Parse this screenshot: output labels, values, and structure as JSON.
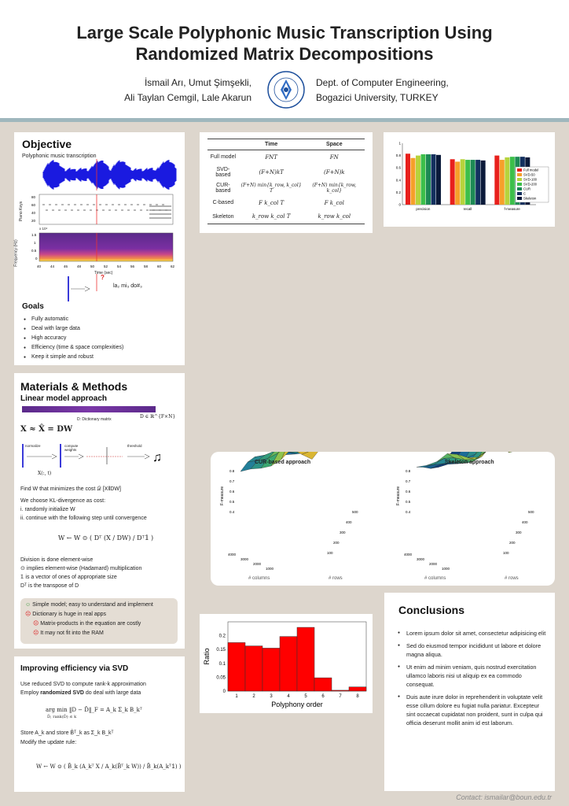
{
  "header": {
    "title_line1": "Large Scale Polyphonic Music Transcription Using",
    "title_line2": "Randomized Matrix Decompositions",
    "authors_line1": "İsmail Arı, Umut Şimşekli,",
    "authors_line2": "Ali Taylan Cemgil, Lale Akarun",
    "dept_line1": "Dept. of Computer Engineering,",
    "dept_line2": "Bogazici University, TURKEY",
    "seal_text": "BOGAZİÇİ ÜNİVERSİTESİ",
    "seal_year": "1863"
  },
  "objective": {
    "heading": "Objective",
    "subtitle": "Polyphonic music transcription",
    "piano_keys_label": "Piano Keys",
    "freq_label": "Frequency (Hz)",
    "freq_scale": "x 10⁴",
    "freq_ticks": [
      "1.5",
      "1",
      "0.5",
      "0"
    ],
    "key_ticks": [
      "80",
      "60",
      "40",
      "20"
    ],
    "time_ticks": [
      "40",
      "44",
      "46",
      "48",
      "50",
      "52",
      "54",
      "56",
      "58",
      "60",
      "62"
    ],
    "time_label": "Time (sec)",
    "question_mark": "?",
    "notes_output": "la₂ mi₃ do#₃",
    "goals_heading": "Goals",
    "goals": [
      "Fully automatic",
      "Deal with large data",
      "High accuracy",
      "Efficiency (time & space complexities)",
      "Keep it simple and robust"
    ]
  },
  "methods": {
    "heading": "Materials & Methods",
    "sub": "Linear model approach",
    "dict_label": "D: Dictionary matrix",
    "dict_dim": "D ∈ ℝ^{F×N}",
    "approx": "X ≈ X̂ = DW",
    "step_normalize": "normalize",
    "step_compute": "compute weights",
    "step_threshold": "threshold",
    "x_label": "X(:, t)",
    "line1": "Find W that minimizes the cost 𝒟 [X‖DW]",
    "line2": "We choose KL-divergence as cost:",
    "line3": "i.  randomly initialize W",
    "line4": "ii.  continue with the following step until convergence",
    "update": "W ← W ⊙ ( Dᵀ (X / DW) / Dᵀ𝟙 )",
    "line5": "Division is done element-wise",
    "line6": "⊙ implies element-wise (Hadamard) multiplication",
    "line7": "𝟙 is a vector of ones of appropriate size",
    "line8": "Dᵀ is the transpose of  D",
    "pro": "Simple model; easy to understand and implement",
    "con1": "Dictionary is huge in real apps",
    "con2": "Matrix-products in the equation are costly",
    "con3": "It may not fit into the RAM"
  },
  "svd": {
    "heading": "Improving efficiency via SVD",
    "line1": "Use reduced SVD to compute rank-k approximation",
    "line2_pre": "Employ ",
    "line2_bold": "randomized SVD",
    "line2_post": " do deal with large data",
    "argmin": "arg min  ‖D − D̂‖_F = A_k Σ_k B_kᵀ",
    "argmin_sub": "D̂, rank(D̂) ≤ k",
    "store": "Store A_k and store B̂ᵀ_k as Σ_k B_kᵀ",
    "modify": "Modify the update rule:",
    "rule": "W ← W ⊙ ( B̂_k (A_kᵀ X / A_k(B̂ᵀ_k W)) / B̂_k(A_kᵀ𝟙) )"
  },
  "complexity": {
    "col_time": "Time",
    "col_space": "Space",
    "rows": [
      {
        "name": "Full  model",
        "time": "FNT",
        "space": "FN"
      },
      {
        "name": "SVD-based",
        "time": "(F+N)kT",
        "space": "(F+N)k"
      },
      {
        "name": "CUR-based",
        "time": "(F+N) min{k_row, k_col} T",
        "space": "(F+N) min{k_row, k_col}"
      },
      {
        "name": "C-based",
        "time": "F k_col T",
        "space": "F k_col"
      },
      {
        "name": "Skeleton",
        "time": "k_row k_col T",
        "space": "k_row k_col"
      }
    ]
  },
  "chart_data": [
    {
      "type": "bar",
      "categories": [
        "precision",
        "recall",
        "f-measure"
      ],
      "series": [
        {
          "name": "Full model",
          "color": "#e8201c",
          "values": [
            0.83,
            0.74,
            0.8
          ]
        },
        {
          "name": "SVD-50",
          "color": "#f6a02a",
          "values": [
            0.76,
            0.7,
            0.73
          ]
        },
        {
          "name": "SVD-100",
          "color": "#b6d33c",
          "values": [
            0.8,
            0.74,
            0.77
          ]
        },
        {
          "name": "SVD-200",
          "color": "#3cbf4a",
          "values": [
            0.82,
            0.73,
            0.78
          ]
        },
        {
          "name": "CUR",
          "color": "#1d8a55",
          "values": [
            0.82,
            0.73,
            0.78
          ]
        },
        {
          "name": "C",
          "color": "#13305f",
          "values": [
            0.82,
            0.73,
            0.78
          ]
        },
        {
          "name": "Skeleton",
          "color": "#0b1a3a",
          "values": [
            0.81,
            0.72,
            0.77
          ]
        }
      ],
      "ylim": [
        0,
        1
      ],
      "yticks": [
        "1",
        "0.8",
        "0.6",
        "0.4",
        "0.2",
        "0"
      ],
      "legend": "right"
    },
    {
      "type": "surface",
      "title": "CUR-based approach",
      "zlabel": "F-measure",
      "xlabel": "# columns",
      "ylabel": "# rows",
      "zticks": [
        "0.8",
        "0.7",
        "0.6",
        "0.5",
        "0.4"
      ],
      "xticks": [
        "4000",
        "3000",
        "2000",
        "1000"
      ],
      "yticks": [
        "500",
        "400",
        "300",
        "200",
        "100"
      ]
    },
    {
      "type": "surface",
      "title": "Skeleton approach",
      "zlabel": "F-measure",
      "xlabel": "# columns",
      "ylabel": "# rows",
      "zticks": [
        "0.8",
        "0.7",
        "0.6",
        "0.5",
        "0.4"
      ],
      "xticks": [
        "4000",
        "3000",
        "2000",
        "1000"
      ],
      "yticks": [
        "500",
        "400",
        "300",
        "200",
        "100"
      ]
    },
    {
      "type": "bar",
      "categories": [
        "1",
        "2",
        "3",
        "4",
        "5",
        "6",
        "7",
        "8"
      ],
      "values": [
        0.175,
        0.163,
        0.155,
        0.197,
        0.23,
        0.048,
        0.003,
        0.015
      ],
      "xlabel": "Polyphony order",
      "ylabel": "Ratio",
      "ylim": [
        0,
        0.25
      ],
      "yticks": [
        "0.2",
        "0.15",
        "0.1",
        "0.05",
        "0"
      ],
      "color": "#ff0000"
    }
  ],
  "conclusions": {
    "heading": "Conclusions",
    "items": [
      "Lorem ipsum dolor sit amet, consectetur adipisicing elit",
      "Sed do eiusmod tempor incididunt ut labore et dolore magna aliqua.",
      "Ut enim ad minim veniam, quis nostrud exercitation ullamco laboris nisi ut aliquip ex ea commodo consequat.",
      "Duis aute irure dolor in reprehenderit in voluptate velit esse cillum dolore eu fugiat nulla pariatur. Excepteur sint occaecat cupidatat non proident, sunt in culpa qui officia deserunt mollit anim id est laborum."
    ]
  },
  "footer": {
    "contact": "Contact: ismailar@boun.edu.tr"
  }
}
